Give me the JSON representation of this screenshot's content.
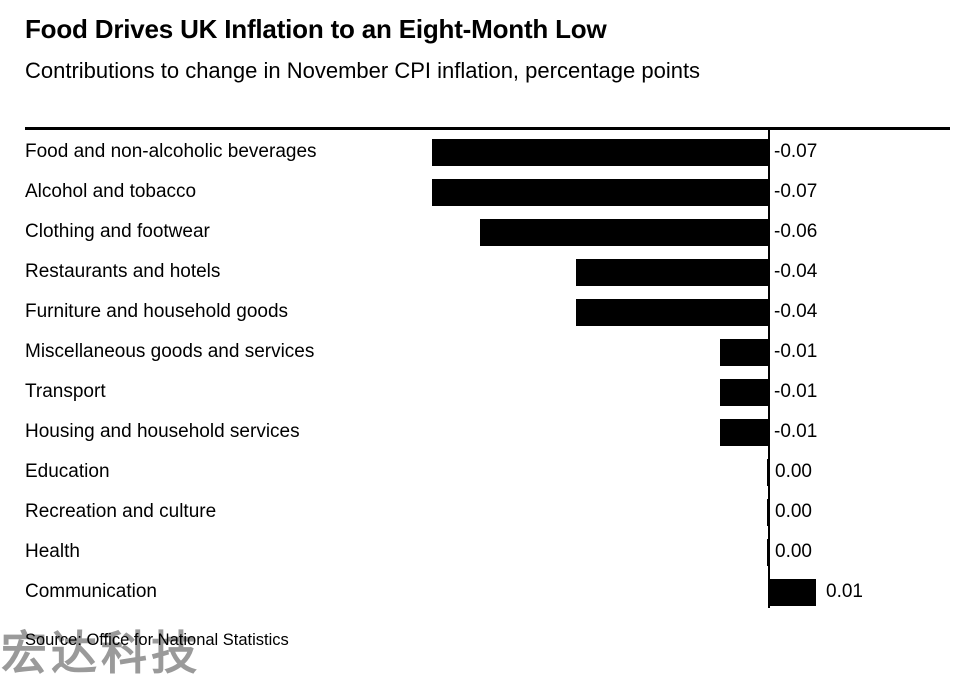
{
  "header": {
    "title": "Food Drives UK Inflation to an Eight-Month Low",
    "subtitle": "Contributions to change in November CPI inflation, percentage points"
  },
  "chart_data": {
    "type": "bar",
    "orientation": "horizontal",
    "title": "Food Drives UK Inflation to an Eight-Month Low",
    "subtitle": "Contributions to change in November CPI inflation, percentage points",
    "xlabel": "",
    "ylabel": "",
    "categories": [
      "Food and non-alcoholic beverages",
      "Alcohol and tobacco",
      "Clothing and footwear",
      "Restaurants and hotels",
      "Furniture and household goods",
      "Miscellaneous goods and services",
      "Transport",
      "Housing and household services",
      "Education",
      "Recreation and culture",
      "Health",
      "Communication"
    ],
    "values": [
      -0.07,
      -0.07,
      -0.06,
      -0.04,
      -0.04,
      -0.01,
      -0.01,
      -0.01,
      0.0,
      0.0,
      0.0,
      0.01
    ],
    "value_labels": [
      "-0.07",
      "-0.07",
      "-0.06",
      "-0.04",
      "-0.04",
      "-0.01",
      "-0.01",
      "-0.01",
      "0.00",
      "0.00",
      "0.00",
      "0.01"
    ],
    "xlim": [
      -0.075,
      0.02
    ],
    "bar_color": "#000000",
    "axis_color": "#000000",
    "grid": false,
    "legend": false,
    "baseline": "zero-vertical-line"
  },
  "footer": {
    "source": "Source: Office for National Statistics",
    "watermark": "宏达科技"
  }
}
